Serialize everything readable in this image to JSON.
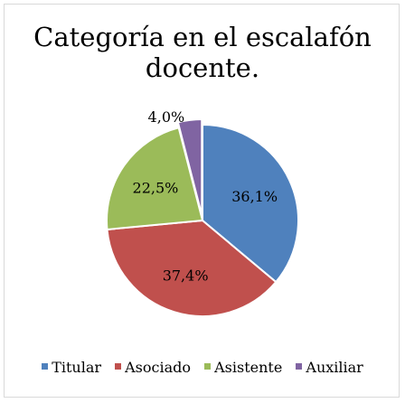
{
  "chart_data": {
    "type": "pie",
    "title": "Categoría en el escalafón docente.",
    "categories": [
      "Titular",
      "Asociado",
      "Asistente",
      "Auxiliar"
    ],
    "values": [
      36.1,
      37.4,
      22.5,
      4.0
    ],
    "labels": [
      "36,1%",
      "37,4%",
      "22,5%",
      "4,0%"
    ],
    "colors": [
      "#4F81BD",
      "#C0504D",
      "#9BBB59",
      "#8064A2"
    ],
    "legend": "bottom",
    "start_angle_deg": 0,
    "direction": "clockwise"
  }
}
